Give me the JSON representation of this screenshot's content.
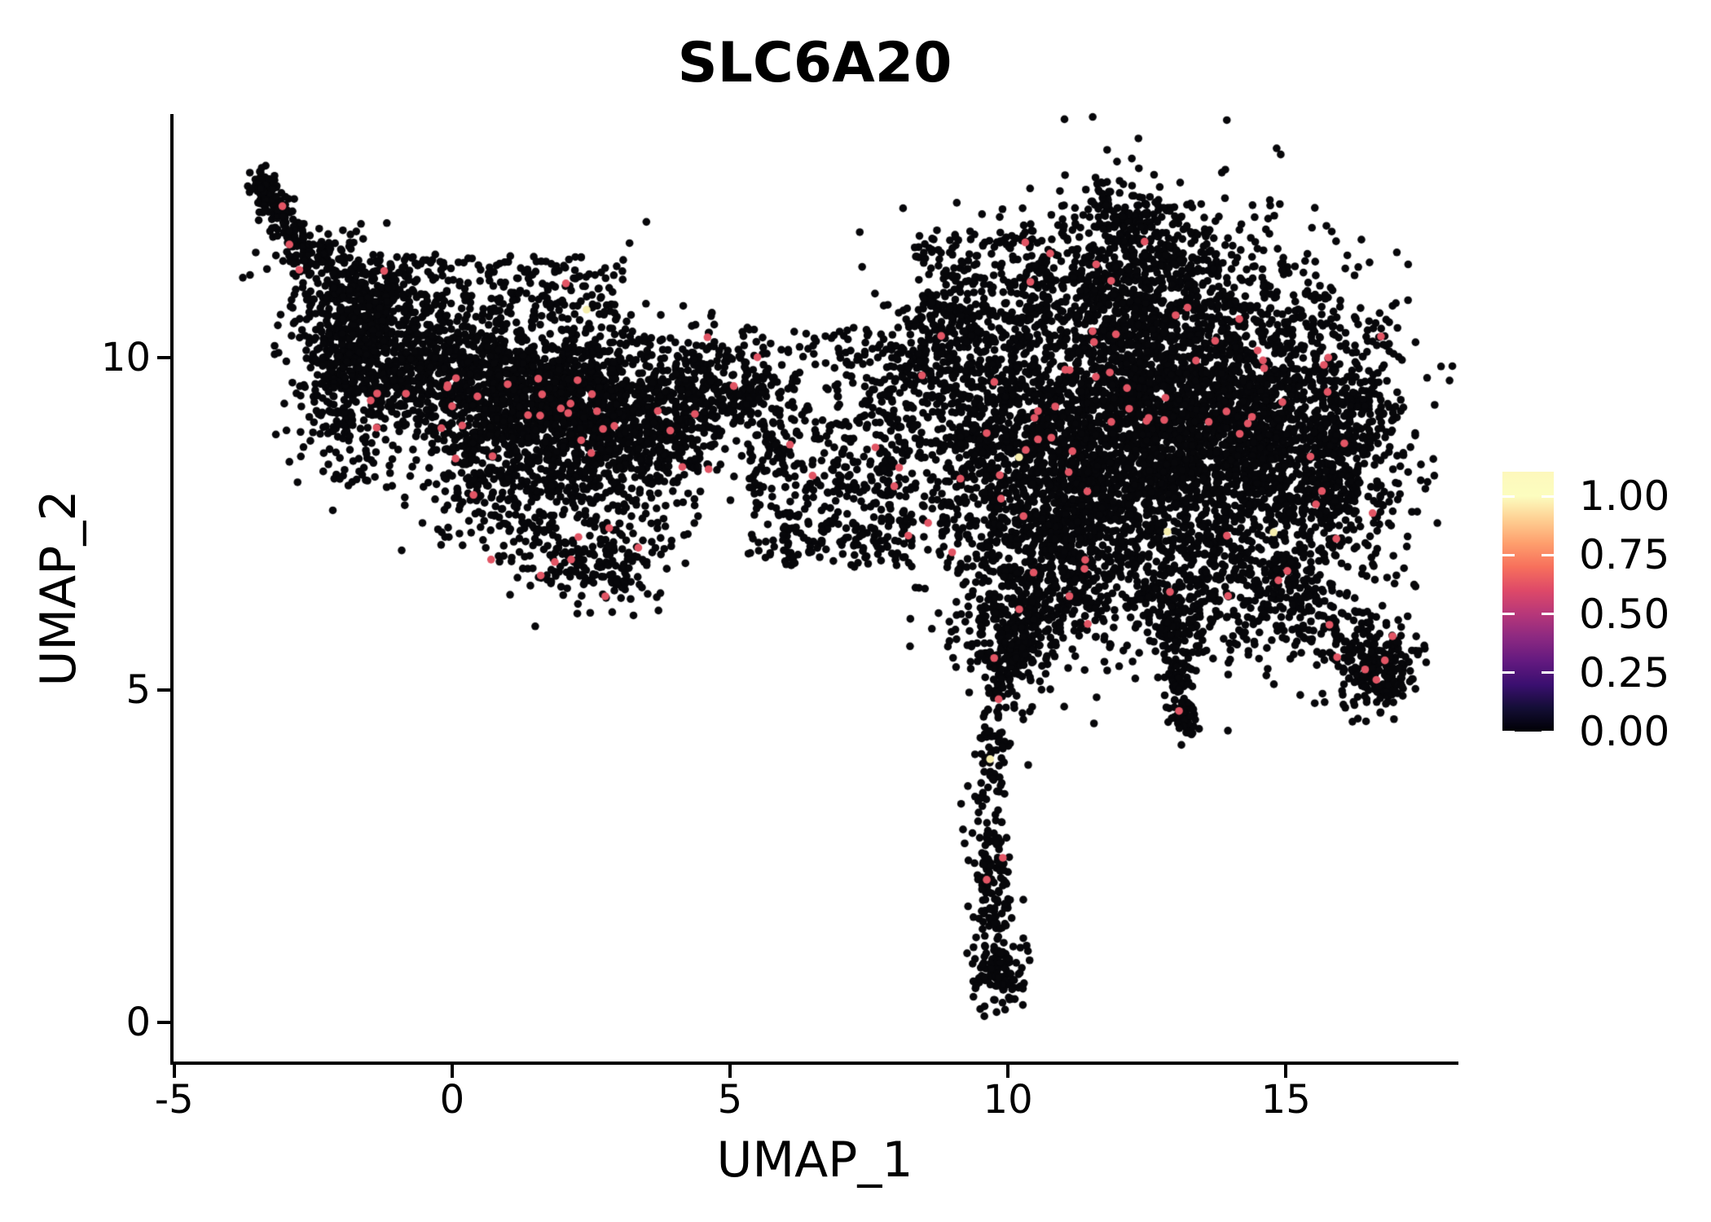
{
  "chart_data": {
    "type": "scatter",
    "title": "SLC6A20",
    "xlabel": "UMAP_1",
    "ylabel": "UMAP_2",
    "x_ticks": [
      -5,
      0,
      5,
      10,
      15
    ],
    "y_ticks": [
      0,
      5,
      10
    ],
    "x_range": [
      -5.04,
      18.09
    ],
    "y_range": [
      -0.61,
      13.66
    ],
    "grid": false,
    "legend_position": "right",
    "point_radius_px": 4.8,
    "colors": {
      "point_black": "#07070a",
      "point_expressed": "#e25565",
      "point_highlight": "#f6eead",
      "axis": "#000000",
      "background": "#ffffff"
    },
    "colorbar": {
      "tick_labels": [
        "1.00",
        "0.75",
        "0.50",
        "0.25",
        "0.00"
      ],
      "tick_values": [
        1.0,
        0.75,
        0.5,
        0.25,
        0.0
      ],
      "vmin": 0.0,
      "vmax": 1.104,
      "colormap": "magma",
      "colormap_stops": [
        "#000004",
        "#140e36",
        "#3b0f70",
        "#641a80",
        "#8c2981",
        "#b73779",
        "#de4968",
        "#f7705c",
        "#fe9f6d",
        "#fecf92",
        "#fcfdbf"
      ]
    },
    "expressed_fraction": 0.011,
    "clusters": [
      {
        "name": "left-tip-stream",
        "type": "segment",
        "x1": -3.45,
        "y1": 12.68,
        "x2": -2.6,
        "y2": 11.45,
        "sd": 0.13,
        "n": 150
      },
      {
        "name": "left-tip-knot",
        "type": "gaussian",
        "cx": -3.35,
        "cy": 12.5,
        "sx": 0.1,
        "sy": 0.15,
        "n": 40
      },
      {
        "name": "left-upper-edge",
        "type": "segment",
        "x1": -2.75,
        "y1": 11.4,
        "x2": -0.9,
        "y2": 10.95,
        "sd": 0.3,
        "n": 200
      },
      {
        "name": "left-sparse-top",
        "type": "box",
        "x1": -1.6,
        "y1": 10.6,
        "x2": 3.1,
        "y2": 11.55,
        "n": 170
      },
      {
        "name": "left-ridge-a",
        "type": "segment",
        "x1": -2.3,
        "y1": 10.35,
        "x2": 1.2,
        "y2": 9.45,
        "sd": 0.55,
        "n": 1050
      },
      {
        "name": "left-ridge-b",
        "type": "segment",
        "x1": 1.2,
        "y1": 9.45,
        "x2": 4.3,
        "y2": 8.85,
        "sd": 0.52,
        "n": 950
      },
      {
        "name": "left-core",
        "type": "gaussian",
        "cx": 1.9,
        "cy": 9.35,
        "sx": 1.15,
        "sy": 0.7,
        "n": 700
      },
      {
        "name": "left-west-flank",
        "type": "gaussian",
        "cx": -1.75,
        "cy": 9.6,
        "sx": 0.5,
        "sy": 0.85,
        "n": 280
      },
      {
        "name": "left-lower-fan",
        "type": "segment",
        "x1": -0.1,
        "y1": 8.25,
        "x2": 3.6,
        "y2": 7.3,
        "sd": 0.55,
        "n": 420
      },
      {
        "name": "left-lower-fringe",
        "type": "segment",
        "x1": 1.6,
        "y1": 7.0,
        "x2": 3.4,
        "y2": 6.75,
        "sd": 0.28,
        "n": 110
      },
      {
        "name": "left-right-arm",
        "type": "segment",
        "x1": 4.3,
        "y1": 9.85,
        "x2": 5.3,
        "y2": 9.3,
        "sd": 0.38,
        "n": 200
      },
      {
        "name": "bridge-upper-sparse",
        "type": "box",
        "x1": 5.2,
        "y1": 9.3,
        "x2": 7.6,
        "y2": 10.45,
        "n": 90
      },
      {
        "name": "bridge-mid",
        "type": "box",
        "x1": 5.3,
        "y1": 6.85,
        "x2": 8.3,
        "y2": 9.3,
        "n": 430
      },
      {
        "name": "bridge-link",
        "type": "segment",
        "x1": 7.9,
        "y1": 9.6,
        "x2": 8.9,
        "y2": 10.4,
        "sd": 0.4,
        "n": 140
      },
      {
        "name": "right-core",
        "type": "gaussian",
        "cx": 12.6,
        "cy": 9.3,
        "sx": 1.7,
        "sy": 1.25,
        "n": 2400
      },
      {
        "name": "right-core-west",
        "type": "gaussian",
        "cx": 10.9,
        "cy": 8.1,
        "sx": 1.2,
        "sy": 1.0,
        "n": 1300
      },
      {
        "name": "right-core-east",
        "type": "gaussian",
        "cx": 14.5,
        "cy": 8.8,
        "sx": 1.25,
        "sy": 1.15,
        "n": 1300
      },
      {
        "name": "right-top-bump",
        "type": "gaussian",
        "cx": 12.3,
        "cy": 11.2,
        "sx": 0.95,
        "sy": 0.62,
        "n": 470
      },
      {
        "name": "right-top-tip",
        "type": "segment",
        "x1": 11.7,
        "y1": 12.4,
        "x2": 12.6,
        "y2": 11.9,
        "sd": 0.28,
        "n": 90
      },
      {
        "name": "right-left-edge",
        "type": "gaussian",
        "cx": 9.3,
        "cy": 9.4,
        "sx": 0.75,
        "sy": 1.05,
        "n": 380
      },
      {
        "name": "right-bottom-west",
        "type": "gaussian",
        "cx": 10.9,
        "cy": 6.6,
        "sx": 0.7,
        "sy": 0.5,
        "n": 220
      },
      {
        "name": "right-bottom-east",
        "type": "gaussian",
        "cx": 13.6,
        "cy": 6.4,
        "sx": 0.9,
        "sy": 0.5,
        "n": 260
      },
      {
        "name": "right-east-edge",
        "type": "gaussian",
        "cx": 16.0,
        "cy": 8.7,
        "sx": 0.6,
        "sy": 0.85,
        "n": 320
      },
      {
        "name": "right-upperleft-sparse",
        "type": "box",
        "x1": 8.3,
        "y1": 10.2,
        "x2": 10.8,
        "y2": 11.9,
        "n": 190
      },
      {
        "name": "tail-long",
        "type": "polyline",
        "pts": [
          [
            10.25,
            6.2
          ],
          [
            9.9,
            5.0
          ],
          [
            9.62,
            3.6
          ],
          [
            9.7,
            2.2
          ],
          [
            9.82,
            1.35
          ]
        ],
        "sd": 0.2,
        "n": 270
      },
      {
        "name": "tail-funnel",
        "type": "gaussian",
        "cx": 10.1,
        "cy": 5.75,
        "sx": 0.5,
        "sy": 0.42,
        "n": 210
      },
      {
        "name": "tail-end-blob",
        "type": "gaussian",
        "cx": 9.85,
        "cy": 0.78,
        "sx": 0.24,
        "sy": 0.3,
        "n": 120
      },
      {
        "name": "tail-short",
        "type": "segment",
        "x1": 12.85,
        "y1": 6.45,
        "x2": 13.25,
        "y2": 4.5,
        "sd": 0.16,
        "n": 140
      },
      {
        "name": "tail-short-knot",
        "type": "gaussian",
        "cx": 13.2,
        "cy": 4.55,
        "sx": 0.13,
        "sy": 0.14,
        "n": 35
      },
      {
        "name": "appendage-stream",
        "type": "segment",
        "x1": 14.55,
        "y1": 6.95,
        "x2": 16.25,
        "y2": 5.65,
        "sd": 0.32,
        "n": 180
      },
      {
        "name": "appendage-blob",
        "type": "gaussian",
        "cx": 16.55,
        "cy": 5.35,
        "sx": 0.38,
        "sy": 0.33,
        "n": 210
      },
      {
        "name": "appendage-tip",
        "type": "segment",
        "x1": 16.75,
        "y1": 5.15,
        "x2": 17.0,
        "y2": 4.95,
        "sd": 0.12,
        "n": 35
      }
    ],
    "highlight_points": [
      [
        2.42,
        10.72
      ],
      [
        10.2,
        8.5
      ],
      [
        12.87,
        7.38
      ],
      [
        14.78,
        7.37
      ],
      [
        9.68,
        3.96
      ]
    ]
  }
}
